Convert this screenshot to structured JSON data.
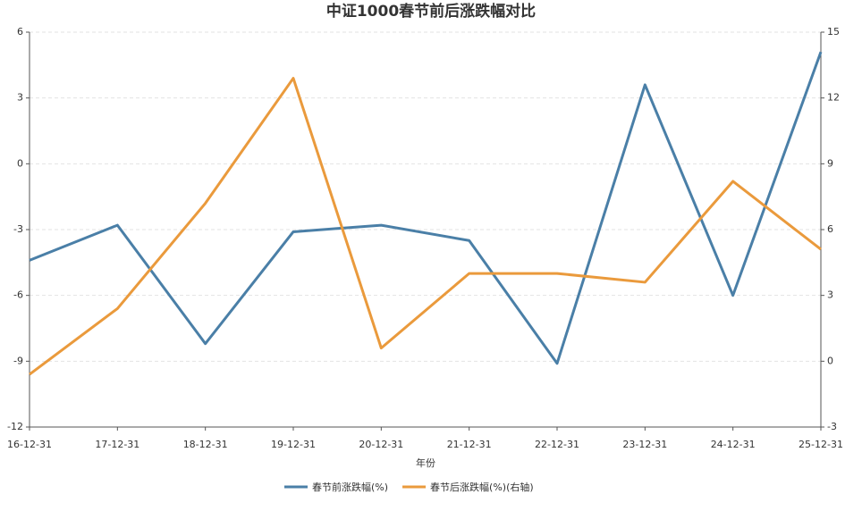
{
  "chart_data": {
    "type": "line",
    "title": "中证1000春节前后涨跌幅对比",
    "x_label": "年份",
    "categories": [
      "16-12-31",
      "17-12-31",
      "18-12-31",
      "19-12-31",
      "20-12-31",
      "21-12-31",
      "22-12-31",
      "23-12-31",
      "24-12-31",
      "25-12-31"
    ],
    "series": [
      {
        "name": "春节前涨跌幅(%)",
        "color": "#4a7fa7",
        "values": [
          -4.4,
          -2.8,
          -8.2,
          -3.1,
          -2.8,
          -3.5,
          -9.1,
          3.6,
          -6.0,
          5.1
        ]
      },
      {
        "name": "春节后涨跌幅(%)(右轴)",
        "color": "#ea9a3c",
        "axis": "y2",
        "values": [
          -0.6,
          2.4,
          7.2,
          12.9,
          0.6,
          4.0,
          4.0,
          3.6,
          8.2,
          5.1
        ]
      }
    ],
    "ylim": [
      -12,
      6
    ],
    "yticks": [
      -12,
      -9,
      -6,
      -3,
      0,
      3,
      6
    ],
    "y2lim": [
      -3,
      15
    ],
    "y2ticks": [
      -3,
      0,
      3,
      6,
      9,
      12,
      15
    ],
    "grid": true,
    "legend": "bottom"
  }
}
